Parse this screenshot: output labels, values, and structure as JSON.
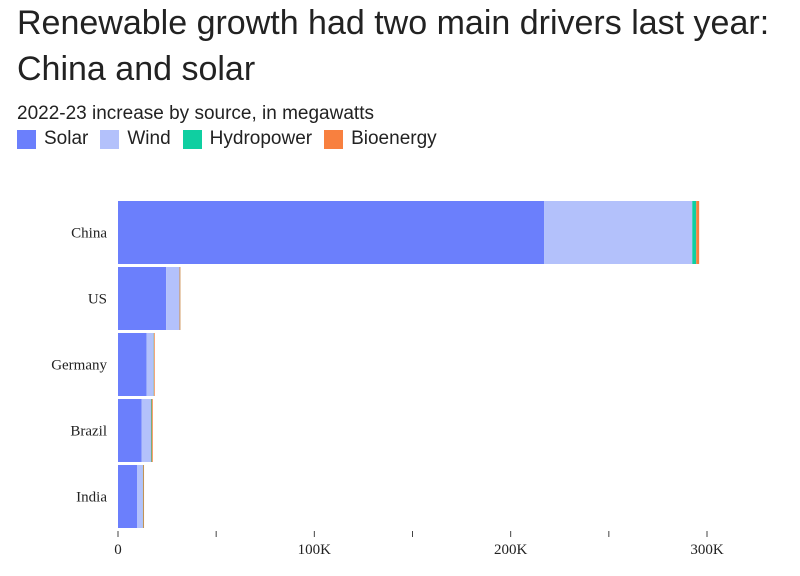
{
  "chart_data": {
    "type": "bar",
    "orientation": "horizontal",
    "stacked": true,
    "title": "Renewable growth had two main drivers last year: China and solar",
    "subtitle": "2022-23 increase by source, in megawatts",
    "categories": [
      "China",
      "US",
      "Germany",
      "Brazil",
      "India"
    ],
    "series": [
      {
        "name": "Solar",
        "color": "#6b7ffc",
        "values": [
          217000,
          24500,
          14500,
          12000,
          9800
        ]
      },
      {
        "name": "Wind",
        "color": "#b3c1fb",
        "values": [
          75500,
          6800,
          3700,
          4800,
          2900
        ]
      },
      {
        "name": "Hydropower",
        "color": "#0fcfa1",
        "values": [
          2000,
          50,
          80,
          300,
          150
        ]
      },
      {
        "name": "Bioenergy",
        "color": "#f8803f",
        "values": [
          1500,
          100,
          400,
          600,
          200
        ]
      }
    ],
    "xlim": [
      0,
      300000
    ],
    "xticks": [
      0,
      50000,
      100000,
      150000,
      200000,
      250000,
      300000
    ],
    "xtick_labels": [
      "0",
      "",
      "100K",
      "",
      "200K",
      "",
      "300K"
    ],
    "xlabel": "",
    "ylabel": "",
    "legend_position": "top-left",
    "grid": false
  }
}
